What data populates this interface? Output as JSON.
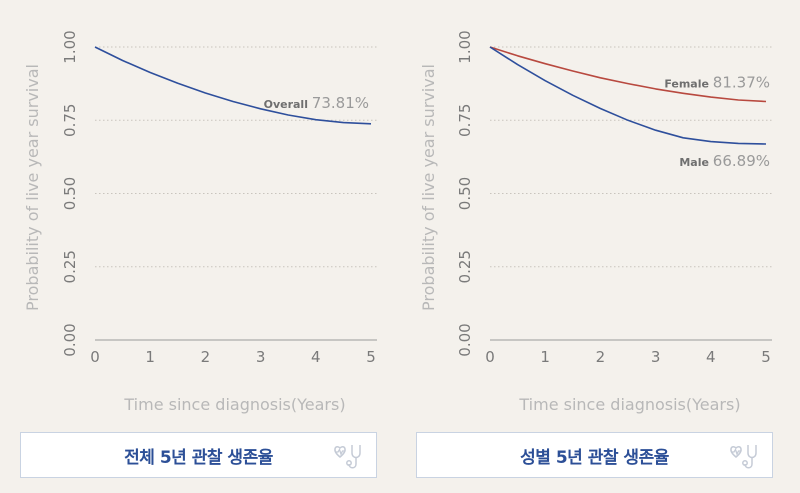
{
  "chart_data": [
    {
      "type": "line",
      "ylabel": "Probability of live year survival",
      "xlabel": "Time since diagnosis(Years)",
      "xlim": [
        0,
        5
      ],
      "ylim": [
        0,
        1
      ],
      "xticks": [
        "0",
        "1",
        "2",
        "3",
        "4",
        "5"
      ],
      "yticks": [
        "0.00",
        "0.25",
        "0.50",
        "0.75",
        "1.00"
      ],
      "grid": "horizontal dotted",
      "series": [
        {
          "name": "Overall",
          "end_label": "73.81%",
          "color": "#2e4f9c",
          "x": [
            0,
            0.5,
            1,
            1.5,
            2,
            2.5,
            3,
            3.5,
            4,
            4.5,
            5
          ],
          "y": [
            1.0,
            0.954,
            0.913,
            0.876,
            0.843,
            0.814,
            0.789,
            0.768,
            0.752,
            0.742,
            0.738
          ]
        }
      ],
      "caption": "전체 5년 관찰 생존율"
    },
    {
      "type": "line",
      "ylabel": "Probability of live year survival",
      "xlabel": "Time since diagnosis(Years)",
      "xlim": [
        0,
        5
      ],
      "ylim": [
        0,
        1
      ],
      "xticks": [
        "0",
        "1",
        "2",
        "3",
        "4",
        "5"
      ],
      "yticks": [
        "0.00",
        "0.25",
        "0.50",
        "0.75",
        "1.00"
      ],
      "grid": "horizontal dotted",
      "series": [
        {
          "name": "Female",
          "end_label": "81.37%",
          "color": "#b8493f",
          "x": [
            0,
            0.5,
            1,
            1.5,
            2,
            2.5,
            3,
            3.5,
            4,
            4.5,
            5
          ],
          "y": [
            1.0,
            0.97,
            0.943,
            0.918,
            0.895,
            0.875,
            0.857,
            0.842,
            0.829,
            0.819,
            0.814
          ]
        },
        {
          "name": "Male",
          "end_label": "66.89%",
          "color": "#2e4f9c",
          "x": [
            0,
            0.5,
            1,
            1.5,
            2,
            2.5,
            3,
            3.5,
            4,
            4.5,
            5
          ],
          "y": [
            1.0,
            0.94,
            0.885,
            0.835,
            0.79,
            0.75,
            0.716,
            0.69,
            0.677,
            0.671,
            0.669
          ]
        }
      ],
      "caption": "성별 5년 관찰 생존율"
    }
  ],
  "colors": {
    "background": "#f4f1ec",
    "axis_text": "#7a7a7a",
    "axis_title": "#b8b8b8",
    "caption_text": "#2c4f97",
    "caption_border": "#c9d3e2"
  },
  "icons": [
    "stethoscope-heart-icon",
    "stethoscope-heart-icon"
  ]
}
